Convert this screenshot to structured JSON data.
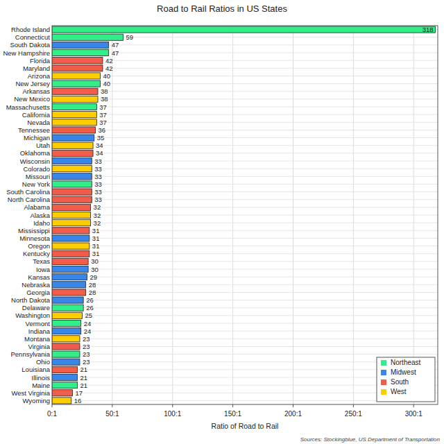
{
  "chart_data": {
    "type": "bar",
    "orientation": "horizontal",
    "title": "Road to Rail Ratios in US States",
    "x_label": "Ratio of Road to Rail",
    "source": "Sources: Stockingblue, US Department of Transportation",
    "categories": [
      "Rhode Island",
      "Connecticut",
      "South Dakota",
      "New Hampshire",
      "Florida",
      "Maryland",
      "Arizona",
      "New Jersey",
      "Arkansas",
      "New Mexico",
      "Massachusetts",
      "California",
      "Nevada",
      "Tennessee",
      "Michigan",
      "Utah",
      "Oklahoma",
      "Wisconsin",
      "Colorado",
      "Missouri",
      "New York",
      "South Carolina",
      "North Carolina",
      "Alabama",
      "Alaska",
      "Idaho",
      "Mississippi",
      "Minnesota",
      "Oregon",
      "Kentucky",
      "Texas",
      "Iowa",
      "Kansas",
      "Nebraska",
      "Georgia",
      "North Dakota",
      "Delaware",
      "Washington",
      "Vermont",
      "Indiana",
      "Montana",
      "Virginia",
      "Pennsylvania",
      "Ohio",
      "Louisiana",
      "Illinois",
      "Maine",
      "West Virginia",
      "Wyoming"
    ],
    "series": [
      {
        "name": "Northeast",
        "color": "#33ee88",
        "values": [
          318,
          59,
          null,
          47,
          null,
          null,
          null,
          40,
          null,
          null,
          37,
          null,
          null,
          null,
          null,
          null,
          null,
          null,
          null,
          null,
          33,
          null,
          null,
          null,
          null,
          null,
          null,
          null,
          null,
          null,
          null,
          null,
          null,
          null,
          null,
          null,
          26,
          null,
          24,
          null,
          null,
          null,
          23,
          null,
          null,
          null,
          21,
          null,
          null
        ]
      },
      {
        "name": "Midwest",
        "color": "#3a86e8",
        "values": [
          null,
          null,
          47,
          null,
          null,
          null,
          null,
          null,
          null,
          null,
          null,
          null,
          null,
          null,
          35,
          null,
          null,
          33,
          null,
          33,
          null,
          null,
          null,
          null,
          null,
          null,
          null,
          31,
          null,
          null,
          null,
          30,
          29,
          28,
          null,
          26,
          null,
          null,
          null,
          24,
          null,
          null,
          null,
          23,
          null,
          21,
          null,
          null,
          null
        ]
      },
      {
        "name": "South",
        "color": "#f25c4a",
        "values": [
          null,
          null,
          null,
          null,
          42,
          42,
          null,
          null,
          38,
          null,
          null,
          null,
          null,
          36,
          null,
          null,
          34,
          null,
          null,
          null,
          null,
          33,
          33,
          32,
          null,
          null,
          31,
          null,
          null,
          31,
          30,
          null,
          null,
          null,
          28,
          null,
          null,
          null,
          null,
          null,
          null,
          23,
          null,
          null,
          21,
          null,
          null,
          17,
          null
        ]
      },
      {
        "name": "West",
        "color": "#ffcc00",
        "values": [
          null,
          null,
          null,
          null,
          null,
          null,
          40,
          null,
          null,
          38,
          null,
          37,
          37,
          null,
          null,
          34,
          null,
          null,
          33,
          null,
          null,
          null,
          null,
          null,
          32,
          32,
          null,
          null,
          31,
          null,
          null,
          null,
          null,
          null,
          null,
          null,
          null,
          25,
          null,
          null,
          23,
          null,
          null,
          null,
          null,
          null,
          null,
          null,
          16
        ]
      }
    ],
    "xlim": [
      0,
      320
    ],
    "xticks": [
      {
        "value": 0,
        "label": "0:1"
      },
      {
        "value": 50,
        "label": "50:1"
      },
      {
        "value": 100,
        "label": "100:1"
      },
      {
        "value": 150,
        "label": "150:1"
      },
      {
        "value": 200,
        "label": "200:1"
      },
      {
        "value": 250,
        "label": "250:1"
      },
      {
        "value": 300,
        "label": "300:1"
      }
    ],
    "grid": true,
    "data_labels": true,
    "legend": "bottom-right"
  }
}
